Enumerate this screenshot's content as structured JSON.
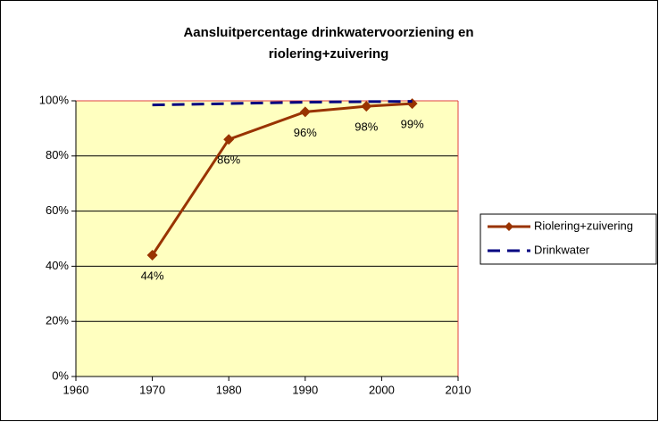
{
  "chart_data": {
    "type": "line",
    "title": [
      "Aansluitpercentage drinkwatervoorziening en",
      "riolering+zuivering"
    ],
    "x": [
      1970,
      1980,
      1990,
      1998,
      2004
    ],
    "series": [
      {
        "name": "Riolering+zuivering",
        "color": "#993300",
        "values": [
          44,
          86,
          96,
          98,
          99
        ],
        "value_labels": [
          "44%",
          "86%",
          "96%",
          "98%",
          "99%"
        ],
        "marker": "diamond",
        "dash": false
      },
      {
        "name": "Drinkwater",
        "color": "#000080",
        "values": [
          98.5,
          99,
          99.5,
          99.7,
          99.8
        ],
        "dash": true
      }
    ],
    "xlim": [
      1960,
      2010
    ],
    "xticks": [
      1960,
      1970,
      1980,
      1990,
      2000,
      2010
    ],
    "ylim": [
      0,
      100
    ],
    "yticks": [
      {
        "value": 0,
        "label": "0%"
      },
      {
        "value": 20,
        "label": "20%"
      },
      {
        "value": 40,
        "label": "40%"
      },
      {
        "value": 60,
        "label": "60%"
      },
      {
        "value": 80,
        "label": "80%"
      },
      {
        "value": 100,
        "label": "100%"
      }
    ],
    "grid": true,
    "legend": "right",
    "plot_background": "#ffffc0"
  }
}
